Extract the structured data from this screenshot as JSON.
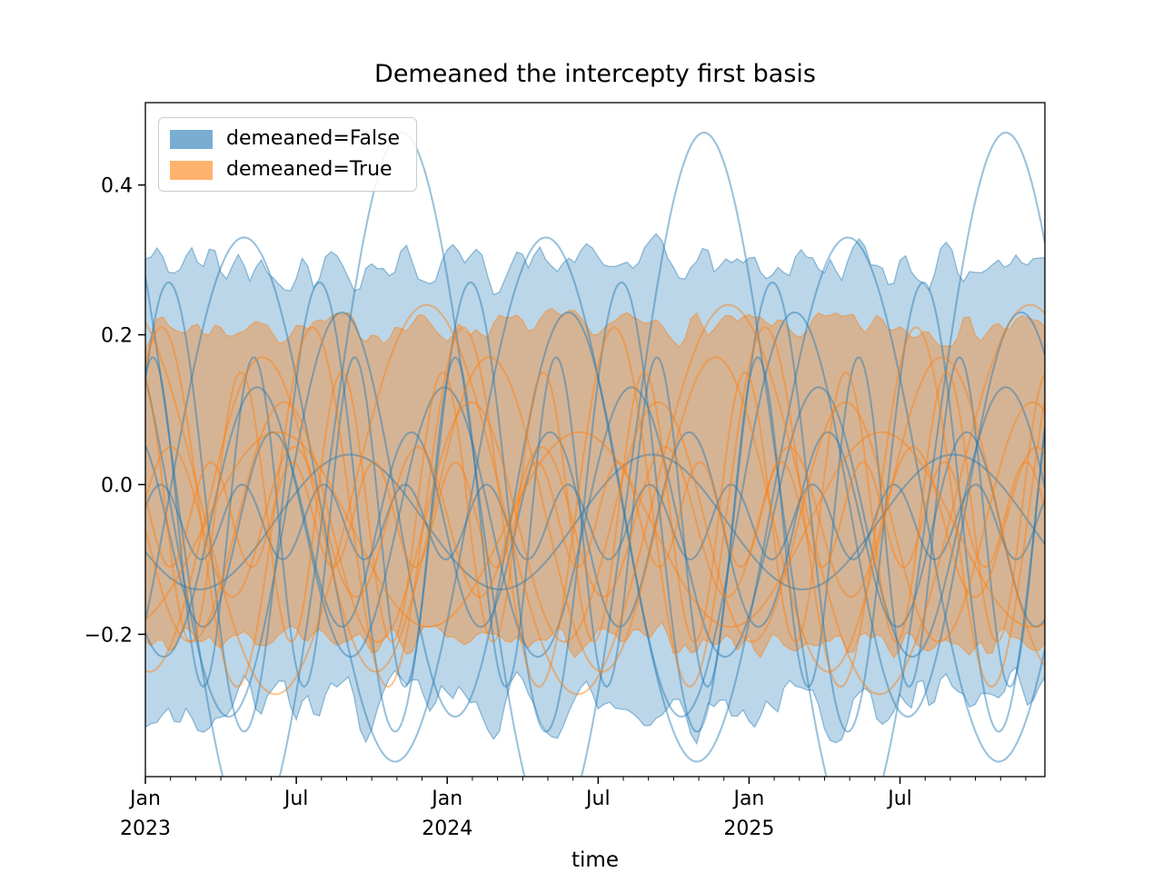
{
  "chart_data": {
    "type": "line",
    "title": "Demeaned the intercepty first basis",
    "xlabel": "time",
    "ylabel": "",
    "x_unit": "years from 2023-01-01",
    "xlim": [
      0,
      2.98
    ],
    "ylim": [
      -0.39,
      0.51
    ],
    "grid": false,
    "xticks": [
      {
        "pos": 0.0,
        "lines": [
          "Jan",
          "2023"
        ]
      },
      {
        "pos": 0.5,
        "lines": [
          "Jul"
        ]
      },
      {
        "pos": 1.0,
        "lines": [
          "Jan",
          "2024"
        ]
      },
      {
        "pos": 1.5,
        "lines": [
          "Jul"
        ]
      },
      {
        "pos": 2.0,
        "lines": [
          "Jan",
          "2025"
        ]
      },
      {
        "pos": 2.5,
        "lines": [
          "Jul"
        ]
      }
    ],
    "x_minor_step": 0.083333,
    "yticks": [
      {
        "pos": -0.2,
        "label": "−0.2"
      },
      {
        "pos": 0.0,
        "label": "0.0"
      },
      {
        "pos": 0.2,
        "label": "0.2"
      },
      {
        "pos": 0.4,
        "label": "0.4"
      }
    ],
    "legend": {
      "position": "upper left",
      "items": [
        {
          "label": "demeaned=False",
          "color": "#1f77b4"
        },
        {
          "label": "demeaned=True",
          "color": "#ff7f0e"
        }
      ]
    },
    "style": {
      "line_alpha": 0.45,
      "line_width": 2.1,
      "band_edge_alpha": 0.45,
      "legend_swatch_alpha": 0.6
    },
    "groups": [
      {
        "name": "demeaned=False",
        "color": "#1f77b4",
        "band": {
          "upper_mean": 0.295,
          "upper_noise": 0.03,
          "lower_mean": -0.295,
          "lower_noise": 0.035,
          "fill_alpha": 0.3,
          "points": 156,
          "seed": 42
        },
        "curves": [
          {
            "amp": 0.47,
            "period": 1.0,
            "phase": 2.51,
            "offset": 0.0
          },
          {
            "amp": 0.35,
            "period": 1.0,
            "phase": 5.8,
            "offset": -0.02
          },
          {
            "amp": 0.3,
            "period": 0.5,
            "phase": 0.6,
            "offset": -0.03
          },
          {
            "amp": 0.27,
            "period": 0.75,
            "phase": 2.4,
            "offset": -0.04
          },
          {
            "amp": 0.22,
            "period": 0.334,
            "phase": 1.1,
            "offset": -0.05
          },
          {
            "amp": 0.18,
            "period": 0.62,
            "phase": 4.1,
            "offset": -0.05
          },
          {
            "amp": 0.13,
            "period": 0.46,
            "phase": 2.1,
            "offset": -0.06
          },
          {
            "amp": 0.09,
            "period": 1.0,
            "phase": 3.6,
            "offset": -0.05
          },
          {
            "amp": 0.05,
            "period": 0.27,
            "phase": 0.4,
            "offset": -0.05
          }
        ]
      },
      {
        "name": "demeaned=True",
        "color": "#ff7f0e",
        "band": {
          "upper_mean": 0.21,
          "upper_noise": 0.018,
          "lower_mean": -0.21,
          "lower_noise": 0.018,
          "fill_alpha": 0.38,
          "points": 156,
          "seed": 7
        },
        "curves": [
          {
            "amp": 0.26,
            "period": 1.0,
            "phase": 2.0,
            "offset": -0.02
          },
          {
            "amp": 0.24,
            "period": 0.5,
            "phase": 0.9,
            "offset": -0.03
          },
          {
            "amp": 0.21,
            "period": 0.75,
            "phase": 4.6,
            "offset": -0.04
          },
          {
            "amp": 0.18,
            "period": 0.334,
            "phase": 1.9,
            "offset": -0.03
          },
          {
            "amp": 0.16,
            "period": 0.62,
            "phase": 3.2,
            "offset": -0.05
          },
          {
            "amp": 0.13,
            "period": 1.0,
            "phase": 5.1,
            "offset": -0.06
          },
          {
            "amp": 0.1,
            "period": 0.41,
            "phase": 0.3,
            "offset": -0.05
          },
          {
            "amp": 0.07,
            "period": 0.27,
            "phase": 2.8,
            "offset": -0.04
          }
        ]
      }
    ]
  }
}
